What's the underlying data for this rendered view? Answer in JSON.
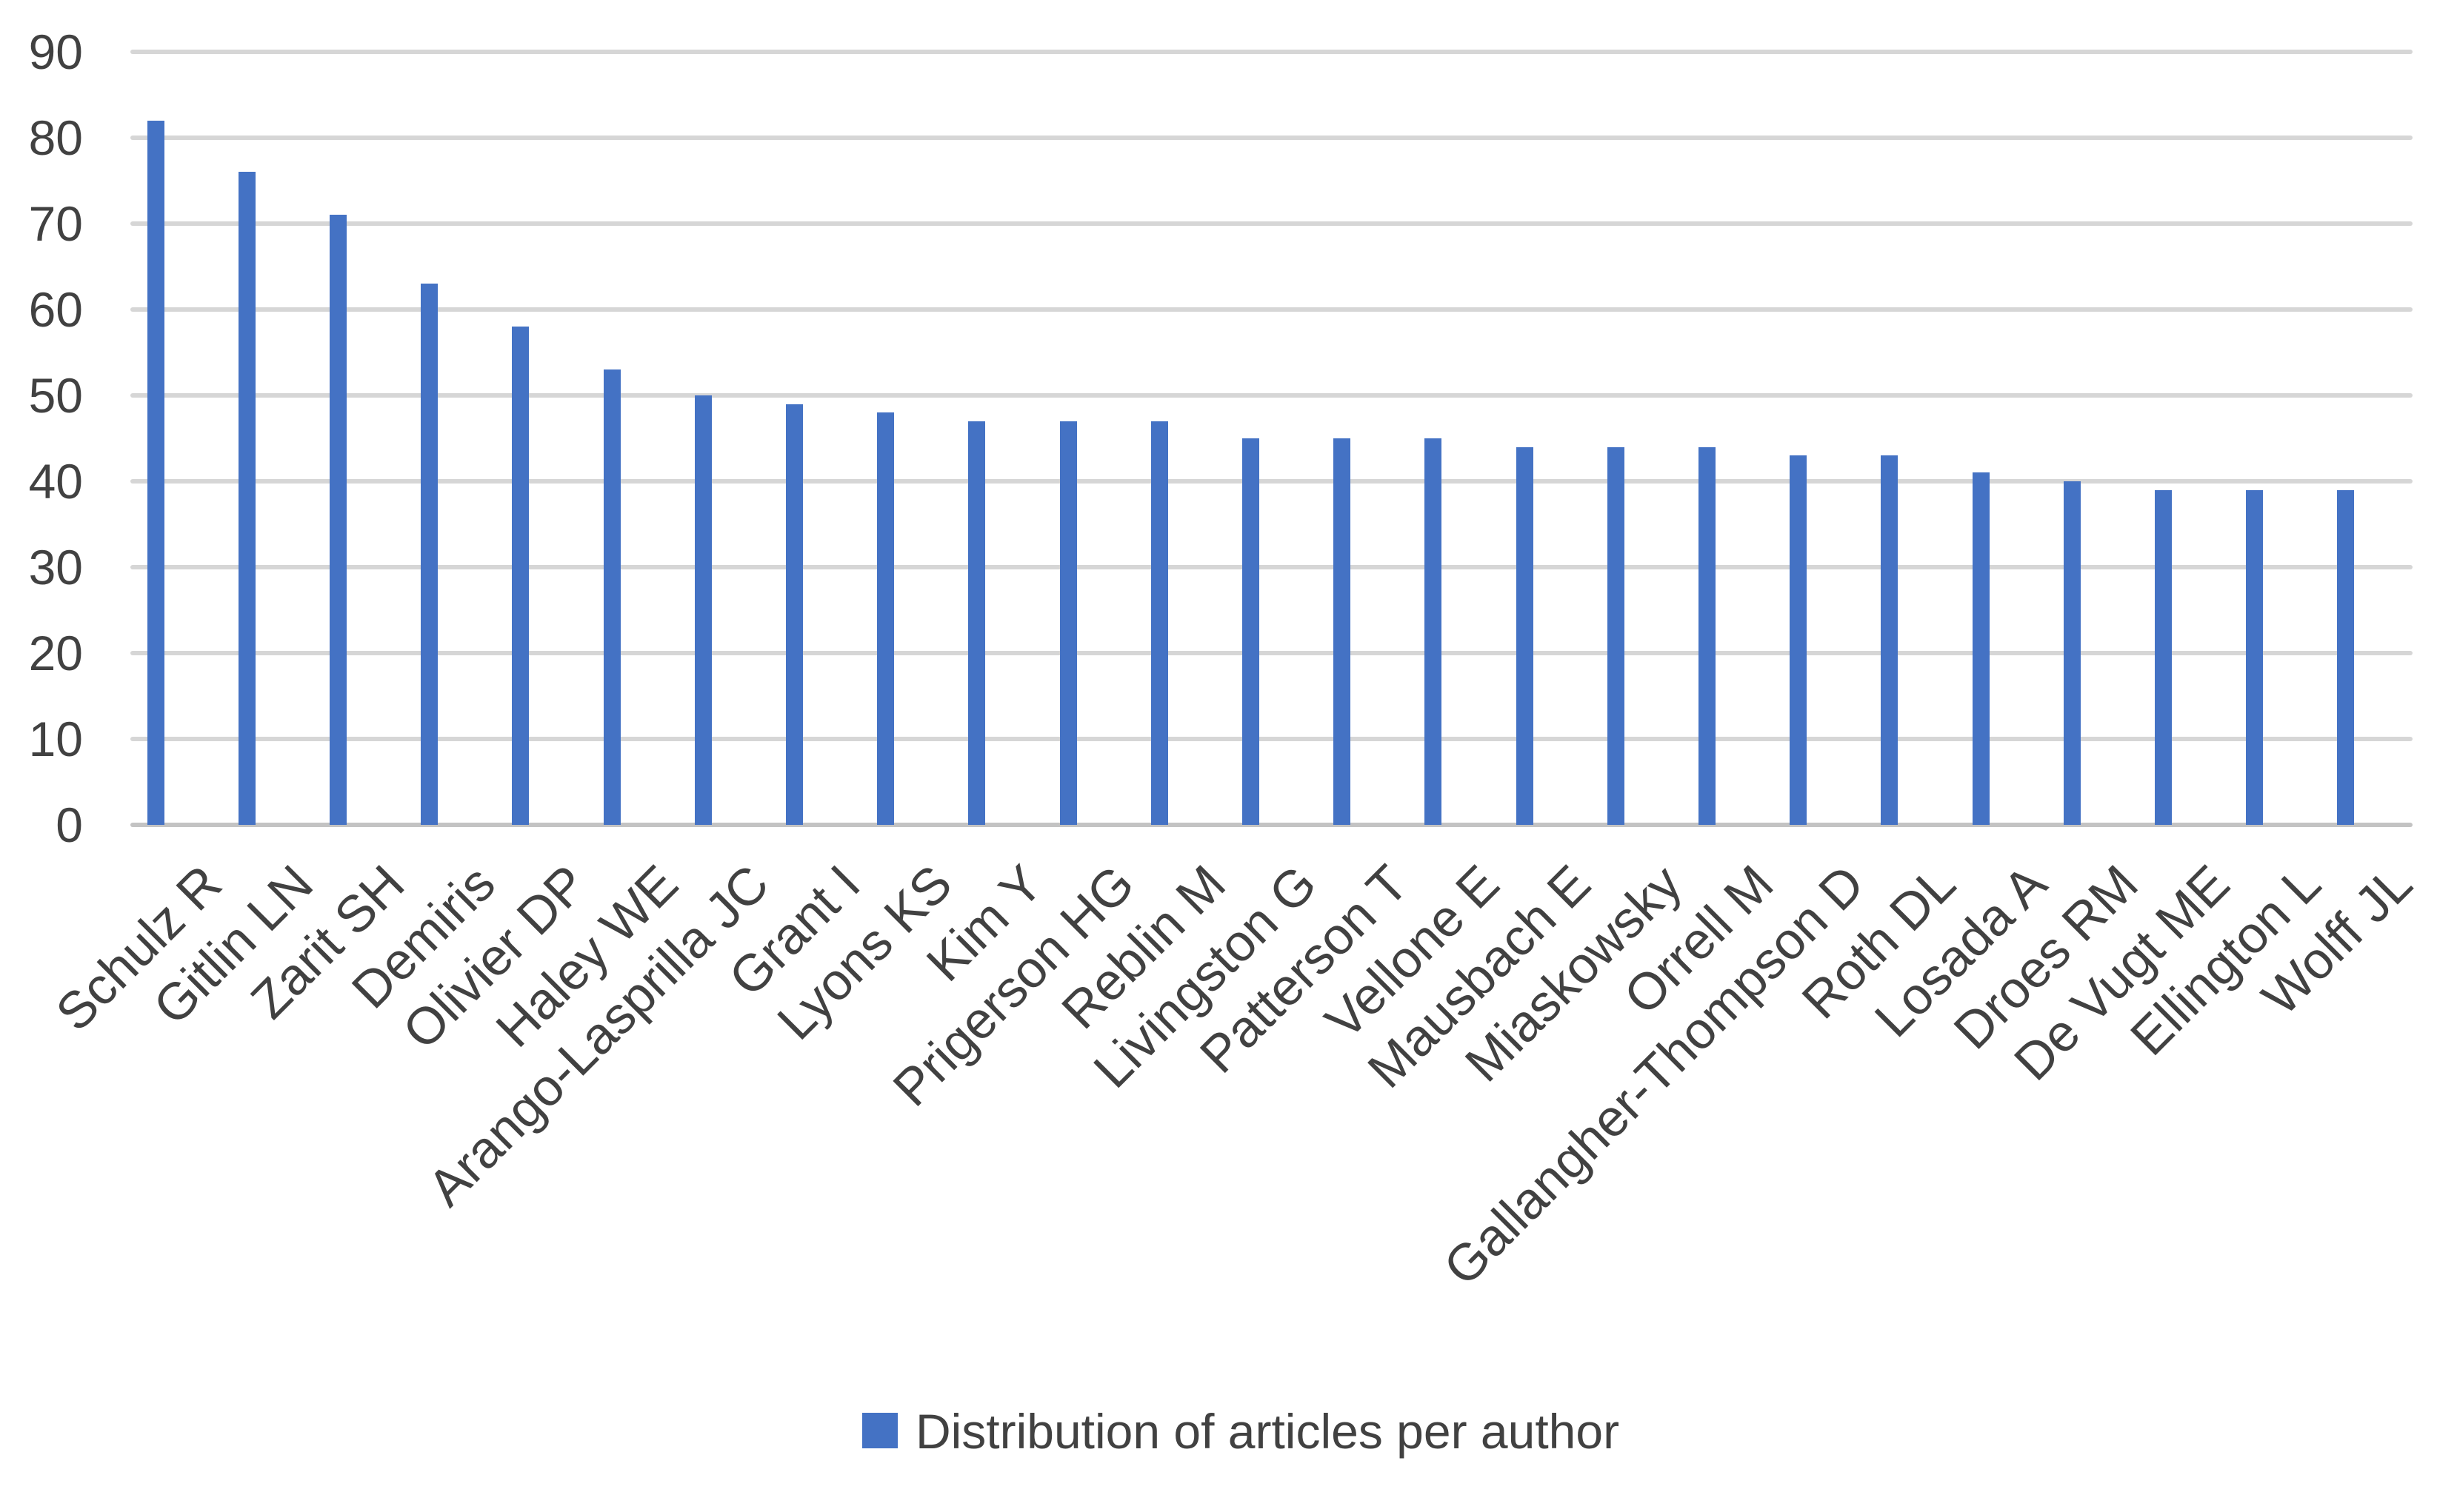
{
  "chart_data": {
    "type": "bar",
    "title": "",
    "categories": [
      "Schulz R",
      "Gitlin LN",
      "Zarit SH",
      "Demiris",
      "Olivier DP",
      "Haley WE",
      "Arango-Lasprilla JC",
      "Grant I",
      "Lyons KS",
      "Kim Y",
      "Prigerson HG",
      "Reblin M",
      "Livingston G",
      "Patterson T",
      "Vellone E",
      "Mausbach E",
      "Miaskowsky",
      "Orrell M",
      "Gallangher-Thompson D",
      "Roth DL",
      "Losada A",
      "Droes RM",
      "De Vugt ME",
      "Ellington L",
      "Wolff JL"
    ],
    "series": [
      {
        "name": "Distribution of articles per author",
        "values": [
          82,
          76,
          71,
          63,
          58,
          53,
          50,
          49,
          48,
          47,
          47,
          47,
          45,
          45,
          45,
          44,
          44,
          44,
          43,
          43,
          41,
          40,
          39,
          39,
          39
        ]
      }
    ],
    "xlabel": "",
    "ylabel": "",
    "ylim": [
      0,
      90
    ],
    "yticks": [
      90,
      80,
      70,
      60,
      50,
      40,
      30,
      20,
      10,
      0
    ],
    "grid": "horizontal",
    "x_label_rotation": -45,
    "legend_position": "bottom",
    "colors": {
      "bar": "#4472C4",
      "gridline": "#D6D6D6",
      "baseline": "#C3C3C3",
      "text": "#414141",
      "background": "#FFFFFF"
    }
  }
}
